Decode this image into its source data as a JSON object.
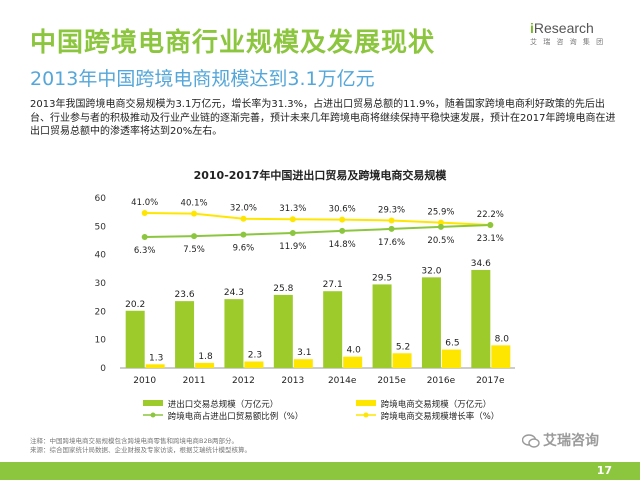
{
  "header": {
    "title": "中国跨境电商行业规模及发展现状",
    "subtitle": "2013年中国跨境电商规模达到3.1万亿元",
    "logo_text_i": "i",
    "logo_text_r": "Research",
    "logo_sub": "艾 瑞 咨 询 集 团"
  },
  "paragraph": "2013年我国跨境电商交易规模为3.1万亿元，增长率为31.3%，占进出口贸易总额的11.9%，随着国家跨境电商利好政策的先后出台、行业参与者的积极推动及行业产业链的逐渐完善，预计未来几年跨境电商将继续保持平稳快速发展，预计在2017年跨境电商在进出口贸易总额中的渗透率将达到20%左右。",
  "chart_data": {
    "type": "bar",
    "title": "2010-2017年中国进出口贸易及跨境电商交易规模",
    "categories": [
      "2010",
      "2011",
      "2012",
      "2013",
      "2014e",
      "2015e",
      "2016e",
      "2017e"
    ],
    "ylim": [
      0,
      60
    ],
    "yticks": [
      "0",
      "10",
      "20",
      "30",
      "40",
      "50",
      "60"
    ],
    "series": [
      {
        "name": "进出口交易总规模（万亿元）",
        "kind": "bar",
        "color": "#9dcb2c",
        "values": [
          20.2,
          23.6,
          24.3,
          25.8,
          27.1,
          29.5,
          32.0,
          34.6
        ],
        "labels": [
          "20.2",
          "23.6",
          "24.3",
          "25.8",
          "27.1",
          "29.5",
          "32.0",
          "34.6"
        ]
      },
      {
        "name": "跨境电商交易规模（万亿元）",
        "kind": "bar",
        "color": "#ffe600",
        "values": [
          1.3,
          1.8,
          2.3,
          3.1,
          4.0,
          5.2,
          6.5,
          8.0
        ],
        "labels": [
          "1.3",
          "1.8",
          "2.3",
          "3.1",
          "4.0",
          "5.2",
          "6.5",
          "8.0"
        ]
      },
      {
        "name": "跨境电商占进出口贸易额比例（%）",
        "kind": "line",
        "color": "#8cc63f",
        "values": [
          6.3,
          7.5,
          9.6,
          11.9,
          14.8,
          17.6,
          20.5,
          23.1
        ],
        "labels": [
          "6.3%",
          "7.5%",
          "9.6%",
          "11.9%",
          "14.8%",
          "17.6%",
          "20.5%",
          "23.1%"
        ]
      },
      {
        "name": "跨境电商交易规模增长率（%）",
        "kind": "line",
        "color": "#ffe600",
        "values": [
          41.0,
          40.1,
          32.0,
          31.3,
          30.6,
          29.3,
          25.9,
          22.2
        ],
        "labels": [
          "41.0%",
          "40.1%",
          "32.0%",
          "31.3%",
          "30.6%",
          "29.3%",
          "25.9%",
          "22.2%"
        ]
      }
    ]
  },
  "notes": {
    "line1": "注释：中国跨境电商交易规模包含跨境电商零售和跨境电商B2B两部分。",
    "line2": "来源：综合国家统计局数据、企业财报及专家访谈，根据艾瑞统计模型核算。"
  },
  "watermark": "艾瑞咨询",
  "page_number": "17"
}
